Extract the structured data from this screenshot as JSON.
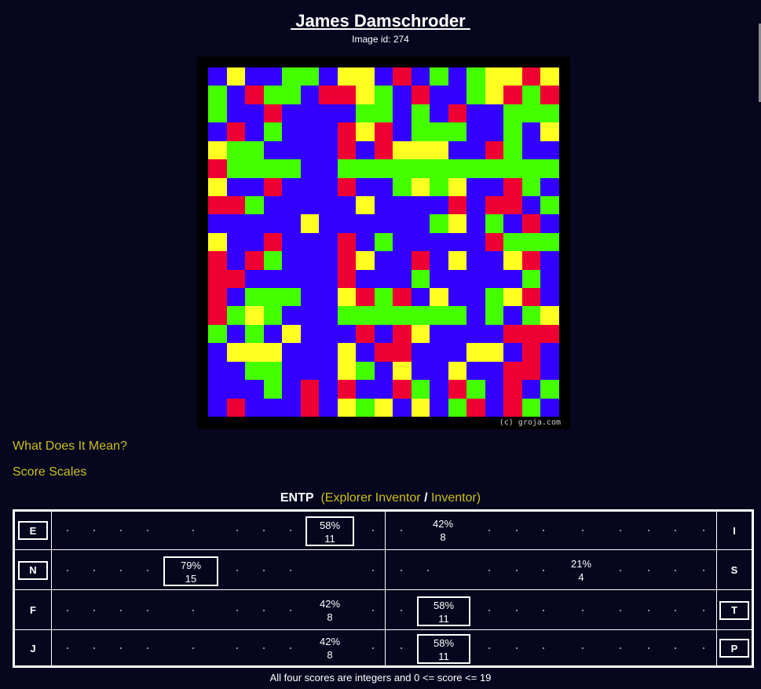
{
  "header": {
    "title": " James Damschroder ",
    "image_id_text": "Image id: 274"
  },
  "artwork": {
    "copyright": "(c) groja.com",
    "colors": {
      "B": "#3300ff",
      "R": "#ee0033",
      "G": "#44ff00",
      "Y": "#ffff22"
    },
    "rows": [
      "BYBBGGBYYBRBGBGYYRY",
      "GBRGGBRRYGBRBBGYRGR",
      "GBBRBBBBGGBGBRBBGGG",
      "BRBGBBBRYRBGGGBBGBY",
      "YGGBBBBRBRYYYBBRGBB",
      "RGGGGBBGGGGGGGGGGGG",
      "YBBRBBBRBBGYGYBBRGB",
      "RRGBBBBBYBBBBRBRRBG",
      "BBBBBYBBBBBBGYBGBRB",
      "YBBRBBBRBGBBBBBRGGG",
      "RBRGBBBRYBBRBYBBYRB",
      "RRBBBBBRBBBGBBBBBGB",
      "RBGGGBBYRGRBYBBGYRB",
      "RGYGBBBGGGGGGGBGBGY",
      "GBGBYBBBRBRYBBBBRRR",
      "BYYYBBBYBRRBBBYYBRB",
      "BBGGBBBYGBYBBYBBRRB",
      "BBBGBRBRBBRGBRGBRBG",
      "BRBBBRBYGYBYBGRBRGB"
    ]
  },
  "links": {
    "what_does_it_mean": "What Does It Mean?",
    "score_scales": "Score Scales"
  },
  "type_summary": {
    "code": "ENTP",
    "open_paren": "(",
    "primary": "Explorer Inventor",
    "slash": "/",
    "secondary": "Inventor",
    "close_paren": ")"
  },
  "scores": [
    {
      "left": "E",
      "right": "I",
      "left_selected": false,
      "right_selected": false,
      "left_pct": "58%",
      "left_val": "11",
      "right_pct": "42%",
      "right_val": "8",
      "left_boxed": true,
      "right_boxed": false
    },
    {
      "left": "N",
      "right": "S",
      "left_selected": true,
      "right_selected": false,
      "left_pct": "79%",
      "left_val": "15",
      "right_pct": "21%",
      "right_val": "4",
      "left_boxed": true,
      "right_boxed": false
    },
    {
      "left": "F",
      "right": "T",
      "left_selected": false,
      "right_selected": true,
      "left_pct": "42%",
      "left_val": "8",
      "right_pct": "58%",
      "right_val": "11",
      "left_boxed": false,
      "right_boxed": true
    },
    {
      "left": "J",
      "right": "P",
      "left_selected": false,
      "right_selected": true,
      "left_pct": "42%",
      "left_val": "8",
      "right_pct": "58%",
      "right_val": "11",
      "left_boxed": false,
      "right_boxed": true
    }
  ],
  "footnote": "All four scores are integers and 0 <= score <= 19"
}
